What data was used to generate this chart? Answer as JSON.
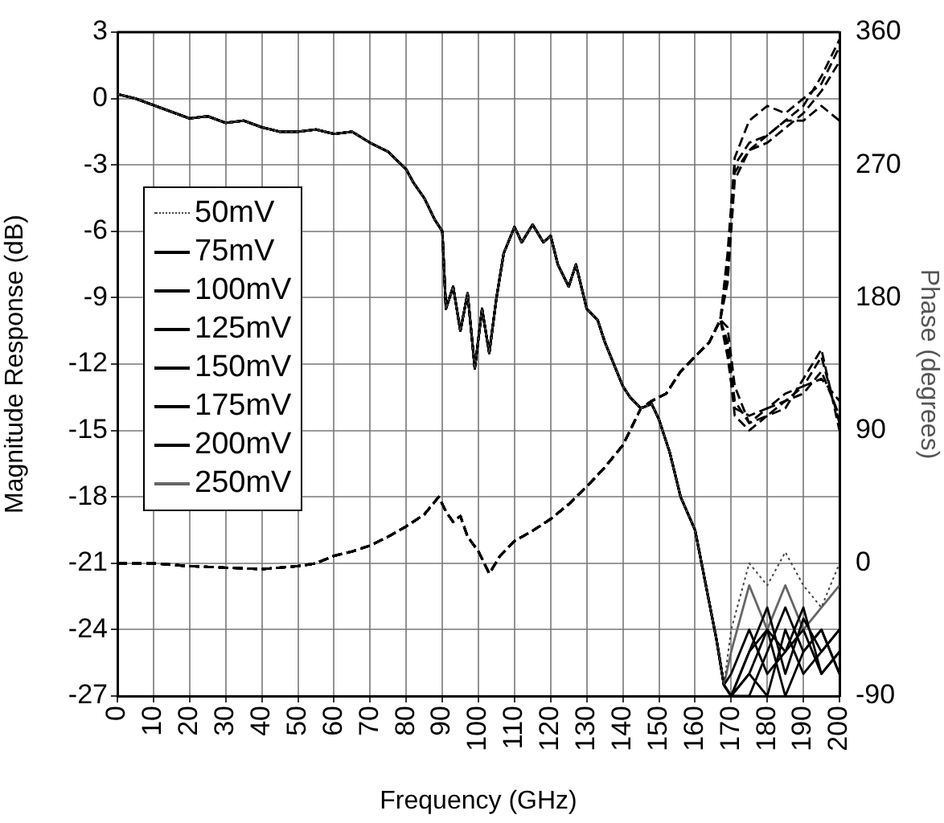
{
  "chart_data": {
    "type": "line",
    "xlabel": "Frequency (GHz)",
    "ylabel": "Magnitude Response (dB)",
    "y2label": "Phase (degrees)",
    "xlim": [
      0,
      200
    ],
    "xticks": [
      0,
      10,
      20,
      30,
      40,
      50,
      60,
      70,
      80,
      90,
      100,
      110,
      120,
      130,
      140,
      150,
      160,
      170,
      180,
      190,
      200
    ],
    "ylim": [
      -27,
      3
    ],
    "yticks": [
      -27,
      -24,
      -21,
      -18,
      -15,
      -12,
      -9,
      -6,
      -3,
      0,
      3
    ],
    "y2lim": [
      -90,
      360
    ],
    "y2ticks": [
      -90,
      0,
      90,
      180,
      270,
      360
    ],
    "grid": true,
    "legend": "left",
    "marker": "none",
    "series": [
      {
        "name": "50mV",
        "color": "#444444",
        "line_style": "dotted",
        "x": [
          0,
          5,
          10,
          15,
          20,
          25,
          30,
          35,
          40,
          45,
          50,
          55,
          60,
          65,
          70,
          75,
          80,
          82,
          85,
          88,
          90,
          91,
          93,
          95,
          97,
          99,
          101,
          103,
          105,
          107,
          110,
          112,
          115,
          118,
          120,
          122,
          125,
          127,
          130,
          133,
          135,
          138,
          140,
          142,
          145,
          148,
          150,
          153,
          156,
          160,
          163,
          166,
          168,
          170,
          175,
          180,
          185,
          190,
          195,
          200
        ],
        "values": [
          0.2,
          0,
          -0.3,
          -0.6,
          -0.9,
          -0.8,
          -1.1,
          -1.0,
          -1.3,
          -1.5,
          -1.5,
          -1.4,
          -1.6,
          -1.5,
          -2.0,
          -2.4,
          -3.2,
          -3.8,
          -4.5,
          -5.5,
          -6.0,
          -9.5,
          -8.5,
          -10.5,
          -8.8,
          -12.2,
          -9.5,
          -11.5,
          -9,
          -7,
          -5.8,
          -6.5,
          -5.7,
          -6.5,
          -6.2,
          -7.5,
          -8.5,
          -7.5,
          -9.5,
          -10,
          -11,
          -12.2,
          -13,
          -13.5,
          -14,
          -13.8,
          -14.5,
          -16,
          -18,
          -19.5,
          -22,
          -24.5,
          -26.5,
          -24,
          -21,
          -22,
          -20.5,
          -22,
          -23,
          -21
        ]
      },
      {
        "name": "75mV",
        "color": "#000000",
        "line_style": "solid",
        "x": [
          0,
          5,
          10,
          15,
          20,
          25,
          30,
          35,
          40,
          45,
          50,
          55,
          60,
          65,
          70,
          75,
          80,
          82,
          85,
          88,
          90,
          91,
          93,
          95,
          97,
          99,
          101,
          103,
          105,
          107,
          110,
          112,
          115,
          118,
          120,
          122,
          125,
          127,
          130,
          133,
          135,
          138,
          140,
          142,
          145,
          148,
          150,
          153,
          156,
          160,
          163,
          166,
          168,
          170,
          175,
          180,
          185,
          190,
          195,
          200
        ],
        "values": [
          0.2,
          0,
          -0.3,
          -0.6,
          -0.9,
          -0.8,
          -1.1,
          -1.0,
          -1.3,
          -1.5,
          -1.5,
          -1.4,
          -1.6,
          -1.5,
          -2.0,
          -2.4,
          -3.2,
          -3.8,
          -4.5,
          -5.5,
          -6.0,
          -9.5,
          -8.5,
          -10.5,
          -8.8,
          -12.2,
          -9.5,
          -11.5,
          -9,
          -7,
          -5.8,
          -6.5,
          -5.7,
          -6.5,
          -6.2,
          -7.5,
          -8.5,
          -7.5,
          -9.5,
          -10,
          -11,
          -12.2,
          -13,
          -13.5,
          -14,
          -13.8,
          -14.5,
          -16,
          -18,
          -19.5,
          -22,
          -24.5,
          -26.5,
          -27,
          -25,
          -23,
          -26,
          -23.5,
          -25,
          -24
        ]
      },
      {
        "name": "100mV",
        "color": "#000000",
        "line_style": "solid",
        "x": [
          0,
          5,
          10,
          15,
          20,
          25,
          30,
          35,
          40,
          45,
          50,
          55,
          60,
          65,
          70,
          75,
          80,
          82,
          85,
          88,
          90,
          91,
          93,
          95,
          97,
          99,
          101,
          103,
          105,
          107,
          110,
          112,
          115,
          118,
          120,
          122,
          125,
          127,
          130,
          133,
          135,
          138,
          140,
          142,
          145,
          148,
          150,
          153,
          156,
          160,
          163,
          166,
          168,
          170,
          175,
          180,
          185,
          190,
          195,
          200
        ],
        "values": [
          0.2,
          0,
          -0.3,
          -0.6,
          -0.9,
          -0.8,
          -1.1,
          -1.0,
          -1.3,
          -1.5,
          -1.5,
          -1.4,
          -1.6,
          -1.5,
          -2.0,
          -2.4,
          -3.2,
          -3.8,
          -4.5,
          -5.5,
          -6.0,
          -9.5,
          -8.5,
          -10.5,
          -8.8,
          -12.2,
          -9.5,
          -11.5,
          -9,
          -7,
          -5.8,
          -6.5,
          -5.7,
          -6.5,
          -6.2,
          -7.5,
          -8.5,
          -7.5,
          -9.5,
          -10,
          -11,
          -12.2,
          -13,
          -13.5,
          -14,
          -13.8,
          -14.5,
          -16,
          -18,
          -19.5,
          -22,
          -24.5,
          -26.5,
          -27,
          -26,
          -24,
          -25,
          -24,
          -26,
          -25
        ]
      },
      {
        "name": "125mV",
        "color": "#000000",
        "line_style": "solid",
        "x": [
          0,
          5,
          10,
          15,
          20,
          25,
          30,
          35,
          40,
          45,
          50,
          55,
          60,
          65,
          70,
          75,
          80,
          82,
          85,
          88,
          90,
          91,
          93,
          95,
          97,
          99,
          101,
          103,
          105,
          107,
          110,
          112,
          115,
          118,
          120,
          122,
          125,
          127,
          130,
          133,
          135,
          138,
          140,
          142,
          145,
          148,
          150,
          153,
          156,
          160,
          163,
          166,
          168,
          170,
          175,
          180,
          185,
          190,
          195,
          200
        ],
        "values": [
          0.2,
          0,
          -0.3,
          -0.6,
          -0.9,
          -0.8,
          -1.1,
          -1.0,
          -1.3,
          -1.5,
          -1.5,
          -1.4,
          -1.6,
          -1.5,
          -2.0,
          -2.4,
          -3.2,
          -3.8,
          -4.5,
          -5.5,
          -6.0,
          -9.5,
          -8.5,
          -10.5,
          -8.8,
          -12.2,
          -9.5,
          -11.5,
          -9,
          -7,
          -5.8,
          -6.5,
          -5.7,
          -6.5,
          -6.2,
          -7.5,
          -8.5,
          -7.5,
          -9.5,
          -10,
          -11,
          -12.2,
          -13,
          -13.5,
          -14,
          -13.8,
          -14.5,
          -16,
          -18,
          -19.5,
          -22,
          -24.5,
          -26.5,
          -27,
          -27,
          -25,
          -23,
          -25,
          -24,
          -26
        ]
      },
      {
        "name": "150mV",
        "color": "#000000",
        "line_style": "solid",
        "x": [
          0,
          5,
          10,
          15,
          20,
          25,
          30,
          35,
          40,
          45,
          50,
          55,
          60,
          65,
          70,
          75,
          80,
          82,
          85,
          88,
          90,
          91,
          93,
          95,
          97,
          99,
          101,
          103,
          105,
          107,
          110,
          112,
          115,
          118,
          120,
          122,
          125,
          127,
          130,
          133,
          135,
          138,
          140,
          142,
          145,
          148,
          150,
          153,
          156,
          160,
          163,
          166,
          168,
          170,
          175,
          180,
          185,
          190,
          195,
          200
        ],
        "values": [
          0.2,
          0,
          -0.3,
          -0.6,
          -0.9,
          -0.8,
          -1.1,
          -1.0,
          -1.3,
          -1.5,
          -1.5,
          -1.4,
          -1.6,
          -1.5,
          -2.0,
          -2.4,
          -3.2,
          -3.8,
          -4.5,
          -5.5,
          -6.0,
          -9.5,
          -8.5,
          -10.5,
          -8.8,
          -12.2,
          -9.5,
          -11.5,
          -9,
          -7,
          -5.8,
          -6.5,
          -5.7,
          -6.5,
          -6.2,
          -7.5,
          -8.5,
          -7.5,
          -9.5,
          -10,
          -11,
          -12.2,
          -13,
          -13.5,
          -14,
          -13.8,
          -14.5,
          -16,
          -18,
          -19.5,
          -22,
          -24.5,
          -26.5,
          -27,
          -26,
          -27,
          -24,
          -26,
          -25,
          -24
        ]
      },
      {
        "name": "175mV",
        "color": "#000000",
        "line_style": "solid",
        "x": [
          0,
          5,
          10,
          15,
          20,
          25,
          30,
          35,
          40,
          45,
          50,
          55,
          60,
          65,
          70,
          75,
          80,
          82,
          85,
          88,
          90,
          91,
          93,
          95,
          97,
          99,
          101,
          103,
          105,
          107,
          110,
          112,
          115,
          118,
          120,
          122,
          125,
          127,
          130,
          133,
          135,
          138,
          140,
          142,
          145,
          148,
          150,
          153,
          156,
          160,
          163,
          166,
          168,
          170,
          175,
          180,
          185,
          190,
          195,
          200
        ],
        "values": [
          0.2,
          0,
          -0.3,
          -0.6,
          -0.9,
          -0.8,
          -1.1,
          -1.0,
          -1.3,
          -1.5,
          -1.5,
          -1.4,
          -1.6,
          -1.5,
          -2.0,
          -2.4,
          -3.2,
          -3.8,
          -4.5,
          -5.5,
          -6.0,
          -9.5,
          -8.5,
          -10.5,
          -8.8,
          -12.2,
          -9.5,
          -11.5,
          -9,
          -7,
          -5.8,
          -6.5,
          -5.7,
          -6.5,
          -6.2,
          -7.5,
          -8.5,
          -7.5,
          -9.5,
          -10,
          -11,
          -12.2,
          -13,
          -13.5,
          -14,
          -13.8,
          -14.5,
          -16,
          -18,
          -19.5,
          -22,
          -24.5,
          -26.5,
          -26,
          -24,
          -26,
          -25,
          -23,
          -26,
          -25
        ]
      },
      {
        "name": "200mV",
        "color": "#000000",
        "line_style": "solid",
        "x": [
          0,
          5,
          10,
          15,
          20,
          25,
          30,
          35,
          40,
          45,
          50,
          55,
          60,
          65,
          70,
          75,
          80,
          82,
          85,
          88,
          90,
          91,
          93,
          95,
          97,
          99,
          101,
          103,
          105,
          107,
          110,
          112,
          115,
          118,
          120,
          122,
          125,
          127,
          130,
          133,
          135,
          138,
          140,
          142,
          145,
          148,
          150,
          153,
          156,
          160,
          163,
          166,
          168,
          170,
          175,
          180,
          185,
          190,
          195,
          200
        ],
        "values": [
          0.2,
          0,
          -0.3,
          -0.6,
          -0.9,
          -0.8,
          -1.1,
          -1.0,
          -1.3,
          -1.5,
          -1.5,
          -1.4,
          -1.6,
          -1.5,
          -2.0,
          -2.4,
          -3.2,
          -3.8,
          -4.5,
          -5.5,
          -6.0,
          -9.5,
          -8.5,
          -10.5,
          -8.8,
          -12.2,
          -9.5,
          -11.5,
          -9,
          -7,
          -5.8,
          -6.5,
          -5.7,
          -6.5,
          -6.2,
          -7.5,
          -8.5,
          -7.5,
          -9.5,
          -10,
          -11,
          -12.2,
          -13,
          -13.5,
          -14,
          -13.8,
          -14.5,
          -16,
          -18,
          -19.5,
          -22,
          -24.5,
          -26.5,
          -27,
          -25,
          -24,
          -27,
          -25,
          -24,
          -26
        ]
      },
      {
        "name": "250mV",
        "color": "#666666",
        "line_style": "solid",
        "x": [
          0,
          5,
          10,
          15,
          20,
          25,
          30,
          35,
          40,
          45,
          50,
          55,
          60,
          65,
          70,
          75,
          80,
          82,
          85,
          88,
          90,
          91,
          93,
          95,
          97,
          99,
          101,
          103,
          105,
          107,
          110,
          112,
          115,
          118,
          120,
          122,
          125,
          127,
          130,
          133,
          135,
          138,
          140,
          142,
          145,
          148,
          150,
          153,
          156,
          160,
          163,
          166,
          168,
          170,
          175,
          180,
          185,
          190,
          195,
          200
        ],
        "values": [
          0.2,
          0,
          -0.3,
          -0.6,
          -0.9,
          -0.8,
          -1.1,
          -1.0,
          -1.3,
          -1.5,
          -1.5,
          -1.4,
          -1.6,
          -1.5,
          -2.0,
          -2.4,
          -3.2,
          -3.8,
          -4.5,
          -5.5,
          -6.0,
          -9.5,
          -8.5,
          -10.5,
          -8.8,
          -12.2,
          -9.5,
          -11.5,
          -9,
          -7,
          -5.8,
          -6.5,
          -5.7,
          -6.5,
          -6.2,
          -7.5,
          -8.5,
          -7.5,
          -9.5,
          -10,
          -11,
          -12.2,
          -13,
          -13.5,
          -14,
          -13.8,
          -14.5,
          -16,
          -18,
          -19.5,
          -22,
          -24.5,
          -26.5,
          -25,
          -22,
          -24,
          -22,
          -24,
          -23,
          -22
        ]
      },
      {
        "axis": "y2",
        "color": "#000000",
        "line_style": "dashed",
        "x": [
          0,
          10,
          20,
          30,
          40,
          50,
          55,
          60,
          65,
          70,
          75,
          80,
          85,
          89,
          91,
          93,
          95,
          97,
          100,
          103,
          106,
          110,
          115,
          120,
          125,
          130,
          135,
          140,
          145,
          148,
          152,
          156,
          160,
          164,
          167,
          169,
          171,
          175,
          180,
          185,
          190,
          195,
          200
        ],
        "values": [
          0,
          0,
          -2,
          -3,
          -4,
          -2,
          0,
          5,
          8,
          12,
          18,
          25,
          33,
          45,
          35,
          28,
          32,
          18,
          8,
          -7,
          5,
          15,
          22,
          30,
          40,
          52,
          65,
          80,
          105,
          110,
          115,
          130,
          140,
          150,
          165,
          200,
          270,
          285,
          290,
          300,
          310,
          330,
          355
        ]
      },
      {
        "axis": "y2",
        "color": "#000000",
        "line_style": "dashed",
        "x": [
          0,
          10,
          20,
          30,
          40,
          50,
          55,
          60,
          65,
          70,
          75,
          80,
          85,
          89,
          91,
          93,
          95,
          97,
          100,
          103,
          106,
          110,
          115,
          120,
          125,
          130,
          135,
          140,
          145,
          148,
          152,
          156,
          160,
          164,
          167,
          169,
          171,
          175,
          180,
          185,
          190,
          195,
          200
        ],
        "values": [
          0,
          0,
          -2,
          -3,
          -4,
          -2,
          0,
          5,
          8,
          12,
          18,
          25,
          33,
          45,
          35,
          28,
          32,
          18,
          8,
          -7,
          5,
          15,
          22,
          30,
          40,
          52,
          65,
          80,
          105,
          110,
          115,
          130,
          140,
          150,
          165,
          190,
          260,
          280,
          285,
          295,
          305,
          320,
          340
        ]
      },
      {
        "axis": "y2",
        "color": "#000000",
        "line_style": "dashed",
        "x": [
          0,
          10,
          20,
          30,
          40,
          50,
          55,
          60,
          65,
          70,
          75,
          80,
          85,
          89,
          91,
          93,
          95,
          97,
          100,
          103,
          106,
          110,
          115,
          120,
          125,
          130,
          135,
          140,
          145,
          148,
          152,
          156,
          160,
          164,
          167,
          169,
          171,
          175,
          180,
          185,
          190,
          195,
          200
        ],
        "values": [
          0,
          0,
          -2,
          -3,
          -4,
          -2,
          0,
          5,
          8,
          12,
          18,
          25,
          33,
          45,
          35,
          28,
          32,
          18,
          8,
          -7,
          5,
          15,
          22,
          30,
          40,
          52,
          65,
          80,
          105,
          110,
          115,
          130,
          140,
          150,
          165,
          210,
          275,
          300,
          310,
          305,
          315,
          325,
          350
        ]
      },
      {
        "axis": "y2",
        "color": "#000000",
        "line_style": "dashed",
        "x": [
          0,
          10,
          20,
          30,
          40,
          50,
          55,
          60,
          65,
          70,
          75,
          80,
          85,
          89,
          91,
          93,
          95,
          97,
          100,
          103,
          106,
          110,
          115,
          120,
          125,
          130,
          135,
          140,
          145,
          148,
          152,
          156,
          160,
          164,
          167,
          169,
          171,
          175,
          180,
          185,
          190,
          195,
          200
        ],
        "values": [
          0,
          0,
          -2,
          -3,
          -4,
          -2,
          0,
          5,
          8,
          12,
          18,
          25,
          33,
          45,
          35,
          28,
          32,
          18,
          8,
          -7,
          5,
          15,
          22,
          30,
          40,
          52,
          65,
          80,
          105,
          110,
          115,
          130,
          140,
          150,
          165,
          195,
          265,
          280,
          290,
          300,
          300,
          310,
          300
        ]
      },
      {
        "axis": "y2",
        "color": "#000000",
        "line_style": "dashed",
        "x": [
          0,
          10,
          20,
          30,
          40,
          50,
          55,
          60,
          65,
          70,
          75,
          80,
          85,
          89,
          91,
          93,
          95,
          97,
          100,
          103,
          106,
          110,
          115,
          120,
          125,
          130,
          135,
          140,
          145,
          148,
          152,
          156,
          160,
          164,
          167,
          169,
          171,
          175,
          180,
          185,
          190,
          195,
          200
        ],
        "values": [
          0,
          0,
          -2,
          -3,
          -4,
          -2,
          0,
          5,
          8,
          12,
          18,
          25,
          33,
          45,
          35,
          28,
          32,
          18,
          8,
          -7,
          5,
          15,
          22,
          30,
          40,
          52,
          65,
          80,
          105,
          110,
          115,
          130,
          140,
          150,
          165,
          150,
          110,
          95,
          100,
          110,
          115,
          130,
          100
        ]
      },
      {
        "axis": "y2",
        "color": "#000000",
        "line_style": "dashed",
        "x": [
          0,
          10,
          20,
          30,
          40,
          50,
          55,
          60,
          65,
          70,
          75,
          80,
          85,
          89,
          91,
          93,
          95,
          97,
          100,
          103,
          106,
          110,
          115,
          120,
          125,
          130,
          135,
          140,
          145,
          148,
          152,
          156,
          160,
          164,
          167,
          169,
          171,
          175,
          180,
          185,
          190,
          195,
          200
        ],
        "values": [
          0,
          0,
          -2,
          -3,
          -4,
          -2,
          0,
          5,
          8,
          12,
          18,
          25,
          33,
          45,
          35,
          28,
          32,
          18,
          8,
          -7,
          5,
          15,
          22,
          30,
          40,
          52,
          65,
          80,
          105,
          110,
          115,
          130,
          140,
          150,
          165,
          140,
          105,
          100,
          105,
          115,
          120,
          140,
          95
        ]
      },
      {
        "axis": "y2",
        "color": "#000000",
        "line_style": "dashed",
        "x": [
          0,
          10,
          20,
          30,
          40,
          50,
          55,
          60,
          65,
          70,
          75,
          80,
          85,
          89,
          91,
          93,
          95,
          97,
          100,
          103,
          106,
          110,
          115,
          120,
          125,
          130,
          135,
          140,
          145,
          148,
          152,
          156,
          160,
          164,
          167,
          169,
          171,
          175,
          180,
          185,
          190,
          195,
          200
        ],
        "values": [
          0,
          0,
          -2,
          -3,
          -4,
          -2,
          0,
          5,
          8,
          12,
          18,
          25,
          33,
          45,
          35,
          28,
          32,
          18,
          8,
          -7,
          5,
          15,
          22,
          30,
          40,
          52,
          65,
          80,
          105,
          110,
          115,
          130,
          140,
          150,
          165,
          160,
          120,
          95,
          105,
          110,
          120,
          125,
          110
        ]
      },
      {
        "axis": "y2",
        "color": "#000000",
        "line_style": "dashed",
        "x": [
          0,
          10,
          20,
          30,
          40,
          50,
          55,
          60,
          65,
          70,
          75,
          80,
          85,
          89,
          91,
          93,
          95,
          97,
          100,
          103,
          106,
          110,
          115,
          120,
          125,
          130,
          135,
          140,
          145,
          148,
          152,
          156,
          160,
          164,
          167,
          169,
          171,
          175,
          180,
          185,
          190,
          195,
          200
        ],
        "values": [
          0,
          0,
          -2,
          -3,
          -4,
          -2,
          0,
          5,
          8,
          12,
          18,
          25,
          33,
          45,
          35,
          28,
          32,
          18,
          8,
          -7,
          5,
          15,
          22,
          30,
          40,
          52,
          65,
          80,
          105,
          110,
          115,
          130,
          140,
          150,
          165,
          145,
          100,
          90,
          100,
          105,
          125,
          145,
          90
        ]
      }
    ]
  }
}
